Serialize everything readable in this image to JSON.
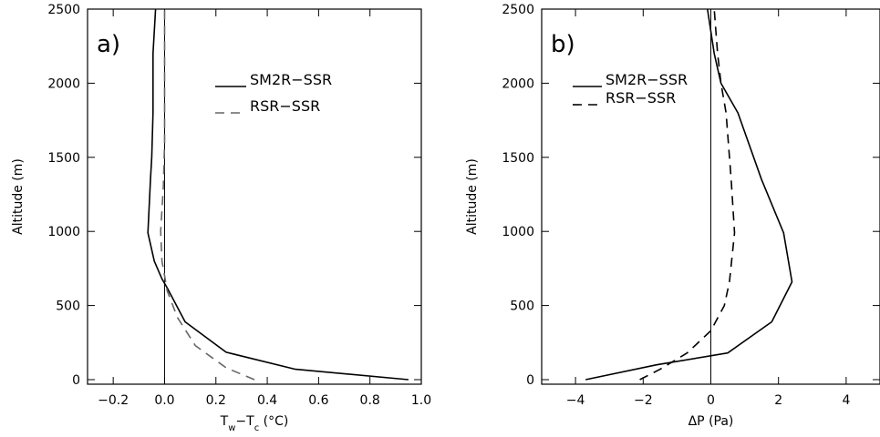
{
  "chart_data": [
    {
      "type": "line",
      "panel_label": "a)",
      "xlabel": "T",
      "xlabel_sub1": "w",
      "xlabel_mid": "−T",
      "xlabel_sub2": "c",
      "xlabel_unit": " (°C)",
      "ylabel": "Altitude (m)",
      "xlim": [
        -0.3,
        1.0
      ],
      "ylim": [
        0,
        2500
      ],
      "xticks": [
        -0.2,
        0.0,
        0.2,
        0.4,
        0.6,
        0.8,
        1.0
      ],
      "xtick_labels": [
        "−0.2",
        "0.0",
        "0.2",
        "0.4",
        "0.6",
        "0.8",
        "1.0"
      ],
      "yticks": [
        0,
        500,
        1000,
        1500,
        2000,
        2500
      ],
      "ytick_labels": [
        "0",
        "500",
        "1000",
        "1500",
        "2000",
        "2500"
      ],
      "zero_line_x": 0,
      "legend": {
        "placement": "top-right"
      },
      "series": [
        {
          "name": "SM2R−SSR",
          "style": "solid",
          "color": "#000000",
          "x": [
            0.95,
            0.51,
            0.24,
            0.08,
            0.01,
            -0.01,
            -0.04,
            -0.065,
            -0.055,
            -0.05,
            -0.045,
            -0.045,
            -0.045,
            -0.035
          ],
          "y": [
            0,
            70,
            185,
            390,
            620,
            680,
            800,
            990,
            1350,
            1500,
            1800,
            2000,
            2200,
            2500
          ]
        },
        {
          "name": "RSR−SSR",
          "style": "dashed",
          "color": "#666666",
          "x": [
            0.35,
            0.24,
            0.12,
            0.05,
            0.01,
            0.0,
            -0.01,
            -0.015,
            -0.005,
            0.0,
            0.0,
            0.0
          ],
          "y": [
            0,
            80,
            230,
            420,
            600,
            700,
            800,
            1000,
            1300,
            1600,
            2000,
            2500
          ]
        }
      ]
    },
    {
      "type": "line",
      "panel_label": "b)",
      "xlabel": "ΔP (Pa)",
      "ylabel": "Altitude (m)",
      "xlim": [
        -5,
        5
      ],
      "ylim": [
        0,
        2500
      ],
      "xticks": [
        -4,
        -2,
        0,
        2,
        4
      ],
      "xtick_labels": [
        "−4",
        "−2",
        "0",
        "2",
        "4"
      ],
      "yticks": [
        0,
        500,
        1000,
        1500,
        2000,
        2500
      ],
      "ytick_labels": [
        "0",
        "500",
        "1000",
        "1500",
        "2000",
        "2500"
      ],
      "zero_line_x": 0,
      "legend": {
        "placement": "top-left"
      },
      "series": [
        {
          "name": "SM2R−SSR",
          "style": "solid",
          "color": "#000000",
          "x": [
            -3.7,
            -1.6,
            0.5,
            1.8,
            2.4,
            2.15,
            1.5,
            0.8,
            0.3,
            0.1,
            -0.1
          ],
          "y": [
            0,
            100,
            180,
            390,
            660,
            990,
            1350,
            1800,
            2000,
            2200,
            2500
          ]
        },
        {
          "name": "RSR−SSR",
          "style": "dashed",
          "color": "#000000",
          "x": [
            -2.1,
            -1.5,
            -0.7,
            0.0,
            0.4,
            0.55,
            0.7,
            0.6,
            0.45,
            0.3,
            0.2,
            0.1
          ],
          "y": [
            0,
            70,
            180,
            330,
            500,
            660,
            990,
            1350,
            1800,
            2000,
            2200,
            2500
          ]
        }
      ]
    }
  ]
}
